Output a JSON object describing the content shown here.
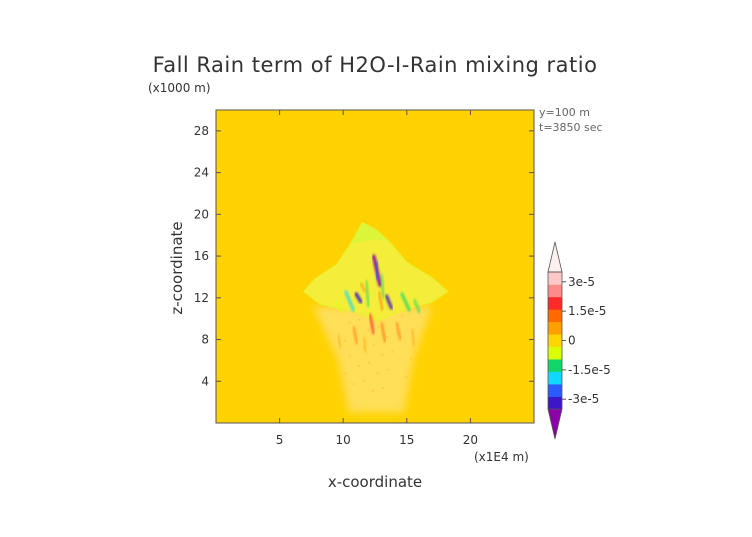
{
  "chart_data": {
    "type": "heatmap",
    "title": "Fall Rain term of H2O-I-Rain mixing ratio",
    "xlabel": "x-coordinate",
    "ylabel": "z-coordinate",
    "x_unit": "(x1E4 m)",
    "y_unit": "(x1000 m)",
    "annotation_lines": [
      "y=100 m",
      "t=3850 sec"
    ],
    "xlim": [
      0,
      25
    ],
    "ylim": [
      0,
      30
    ],
    "x_ticks": [
      5,
      10,
      15,
      20
    ],
    "y_ticks": [
      4,
      8,
      12,
      16,
      20,
      24,
      28
    ],
    "background_value": 0,
    "colorbar": {
      "min": -3.5e-05,
      "max": 3.5e-05,
      "tick_values": [
        3e-05,
        1.5e-05,
        0,
        -1.5e-05,
        -3e-05
      ],
      "tick_labels": [
        "3e-5",
        "1.5e-5",
        "0",
        "-1.5e-5",
        "-3e-5"
      ],
      "colors": [
        "#8b00a8",
        "#3b17c8",
        "#2b5bff",
        "#10d8ff",
        "#12d66a",
        "#d9ff00",
        "#ffd600",
        "#ffa000",
        "#ff6a00",
        "#ff2a2a",
        "#ff8a8a",
        "#ffc8c8",
        "#fff0f0"
      ]
    },
    "regions": [
      {
        "description": "cloud envelope (slightly positive)",
        "x_range": [
          6.8,
          18.2
        ],
        "z_range": [
          10.8,
          19.3
        ],
        "value": 2e-06
      },
      {
        "description": "rain shaft below cloud (slightly negative)",
        "x_range": [
          7.5,
          16.5
        ],
        "z_range": [
          0,
          11
        ],
        "value": -1e-06
      },
      {
        "description": "core strong negative",
        "x": 12.6,
        "z": 15.5,
        "value": -3e-05
      },
      {
        "description": "negative streak",
        "x": 11.2,
        "z": 11.8,
        "value": -2.5e-05
      },
      {
        "description": "negative streak",
        "x": 13.6,
        "z": 11.3,
        "value": -2e-05
      },
      {
        "description": "positive streak",
        "x": 12.3,
        "z": 9.2,
        "value": 1.5e-05
      }
    ]
  }
}
